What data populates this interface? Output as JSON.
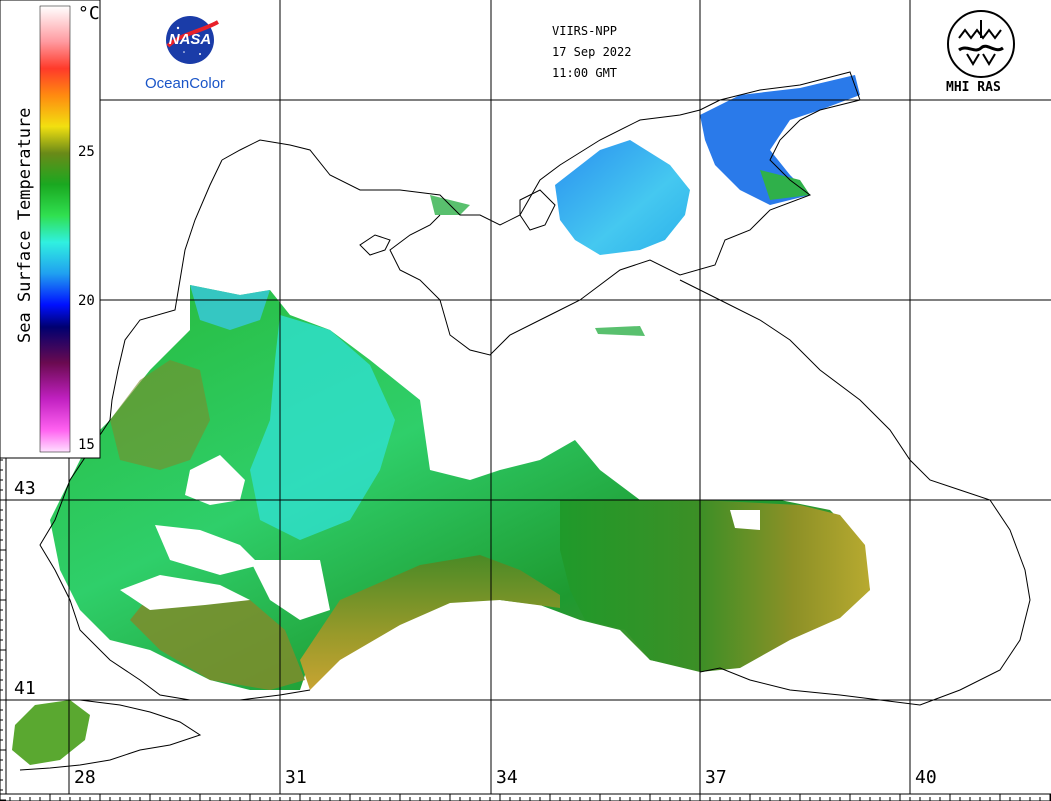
{
  "header": {
    "sensor": "VIIRS-NPP",
    "date": "17 Sep 2022",
    "time": "11:00 GMT"
  },
  "logos": {
    "nasa_text": "NASA",
    "oceancolor": "OceanColor",
    "mhi": "MHI RAS"
  },
  "colorbar": {
    "title": "Sea Surface Temperature",
    "unit": "°C",
    "ticks": [
      "25",
      "20",
      "15"
    ],
    "range": [
      15,
      30
    ]
  },
  "grid": {
    "lat_labels": [
      "43",
      "41"
    ],
    "lon_labels": [
      "28",
      "31",
      "34",
      "37",
      "40"
    ]
  }
}
